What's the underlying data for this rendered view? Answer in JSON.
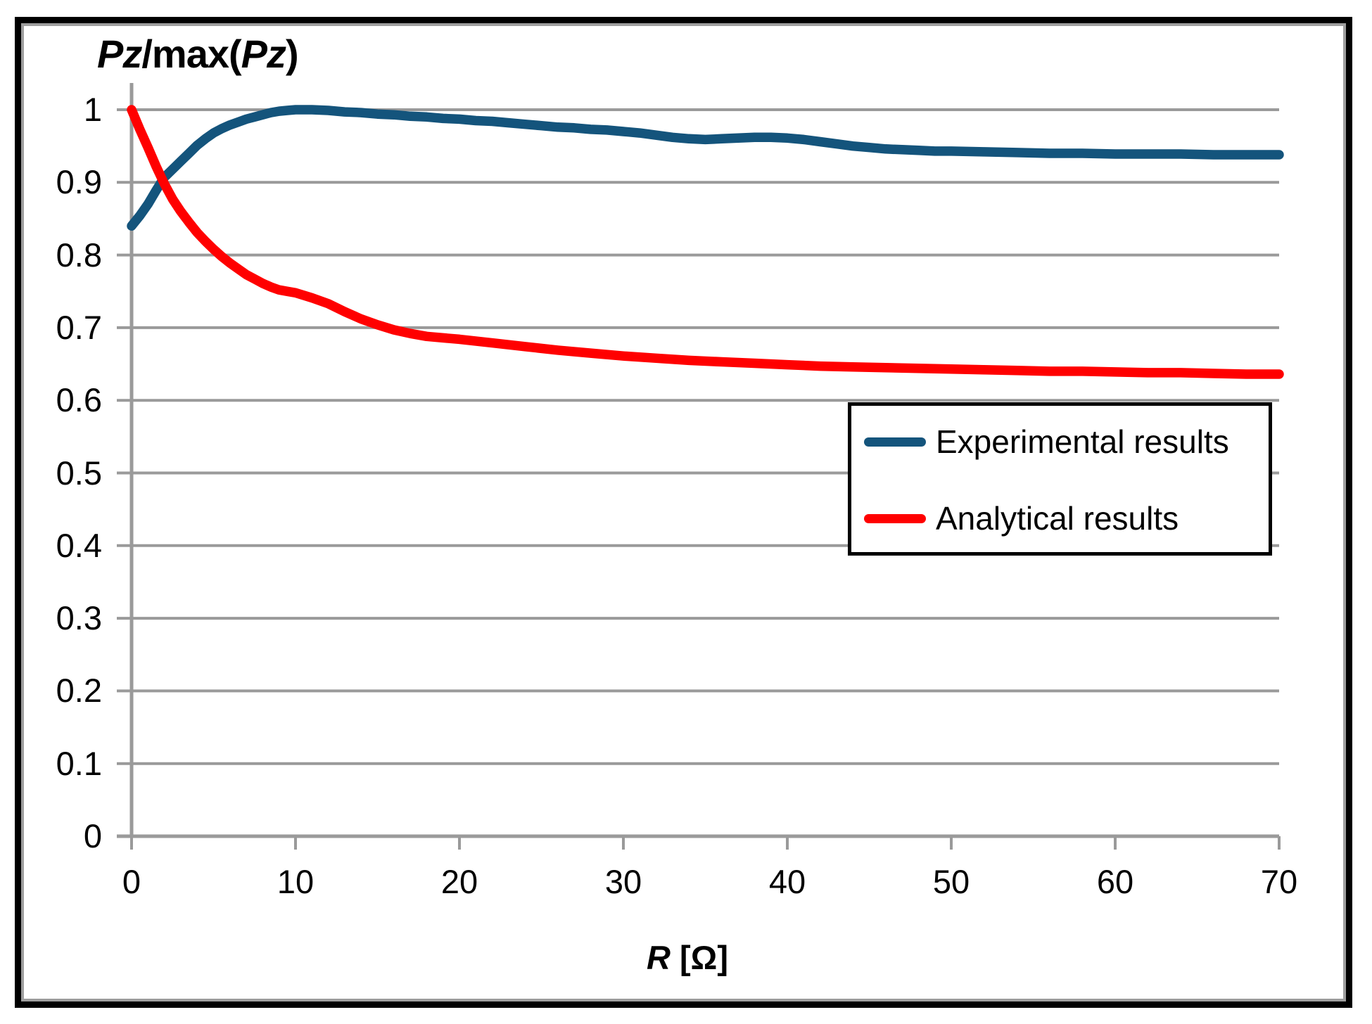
{
  "chart_data": {
    "type": "line",
    "title": {
      "parts": [
        {
          "text": "Pz",
          "italic": true
        },
        {
          "text": "/max(",
          "italic": false
        },
        {
          "text": "Pz",
          "italic": true
        },
        {
          "text": ")",
          "italic": false
        }
      ],
      "display": "Pz/max(Pz)"
    },
    "x_axis": {
      "label_parts": [
        {
          "text": "R",
          "italic": true
        },
        {
          "text": " [Ω]",
          "italic": false
        }
      ],
      "display": "R [Ω]",
      "ticks": [
        0,
        10,
        20,
        30,
        40,
        50,
        60,
        70
      ],
      "range": [
        0,
        70
      ]
    },
    "y_axis": {
      "ticks": [
        "1",
        "0.9",
        "0.8",
        "0.7",
        "0.6",
        "0.5",
        "0.4",
        "0.3",
        "0.2",
        "0.1",
        "0"
      ],
      "range": [
        0,
        1
      ]
    },
    "grid": true,
    "legend_position": "middle-right",
    "colors": {
      "grid": "#9a9a9a",
      "axis": "#9a9a9a",
      "text": "#000000",
      "frame": "#000000",
      "background": "#ffffff"
    },
    "series": [
      {
        "name": "Experimental results",
        "color": "#14547c",
        "points": [
          [
            0,
            0.84
          ],
          [
            0.5,
            0.854
          ],
          [
            1,
            0.87
          ],
          [
            1.5,
            0.889
          ],
          [
            2,
            0.907
          ],
          [
            2.5,
            0.918
          ],
          [
            3,
            0.929
          ],
          [
            3.5,
            0.94
          ],
          [
            4,
            0.951
          ],
          [
            4.5,
            0.96
          ],
          [
            5,
            0.968
          ],
          [
            5.5,
            0.974
          ],
          [
            6,
            0.979
          ],
          [
            6.5,
            0.983
          ],
          [
            7,
            0.987
          ],
          [
            7.5,
            0.99
          ],
          [
            8,
            0.993
          ],
          [
            8.5,
            0.996
          ],
          [
            9,
            0.998
          ],
          [
            9.5,
            0.999
          ],
          [
            10,
            1.0
          ],
          [
            11,
            1.0
          ],
          [
            12,
            0.999
          ],
          [
            13,
            0.997
          ],
          [
            14,
            0.996
          ],
          [
            15,
            0.994
          ],
          [
            16,
            0.993
          ],
          [
            17,
            0.991
          ],
          [
            18,
            0.99
          ],
          [
            19,
            0.988
          ],
          [
            20,
            0.987
          ],
          [
            21,
            0.985
          ],
          [
            22,
            0.984
          ],
          [
            23,
            0.982
          ],
          [
            24,
            0.98
          ],
          [
            25,
            0.978
          ],
          [
            26,
            0.976
          ],
          [
            27,
            0.975
          ],
          [
            28,
            0.973
          ],
          [
            29,
            0.972
          ],
          [
            30,
            0.97
          ],
          [
            31,
            0.968
          ],
          [
            32,
            0.965
          ],
          [
            33,
            0.962
          ],
          [
            34,
            0.96
          ],
          [
            35,
            0.959
          ],
          [
            36,
            0.96
          ],
          [
            37,
            0.961
          ],
          [
            38,
            0.962
          ],
          [
            39,
            0.962
          ],
          [
            40,
            0.961
          ],
          [
            41,
            0.959
          ],
          [
            42,
            0.956
          ],
          [
            43,
            0.953
          ],
          [
            44,
            0.95
          ],
          [
            45,
            0.948
          ],
          [
            46,
            0.946
          ],
          [
            47,
            0.945
          ],
          [
            48,
            0.944
          ],
          [
            49,
            0.943
          ],
          [
            50,
            0.943
          ],
          [
            52,
            0.942
          ],
          [
            54,
            0.941
          ],
          [
            56,
            0.94
          ],
          [
            58,
            0.94
          ],
          [
            60,
            0.939
          ],
          [
            62,
            0.939
          ],
          [
            64,
            0.939
          ],
          [
            66,
            0.938
          ],
          [
            68,
            0.938
          ],
          [
            70,
            0.938
          ]
        ]
      },
      {
        "name": "Analytical results",
        "color": "#ff0000",
        "points": [
          [
            0,
            1.0
          ],
          [
            0.5,
            0.973
          ],
          [
            1,
            0.948
          ],
          [
            1.5,
            0.922
          ],
          [
            2,
            0.898
          ],
          [
            2.5,
            0.877
          ],
          [
            3,
            0.86
          ],
          [
            3.5,
            0.845
          ],
          [
            4,
            0.831
          ],
          [
            4.5,
            0.819
          ],
          [
            5,
            0.808
          ],
          [
            5.5,
            0.798
          ],
          [
            6,
            0.789
          ],
          [
            6.5,
            0.781
          ],
          [
            7,
            0.773
          ],
          [
            7.5,
            0.767
          ],
          [
            8,
            0.761
          ],
          [
            8.5,
            0.756
          ],
          [
            9,
            0.752
          ],
          [
            9.5,
            0.75
          ],
          [
            10,
            0.748
          ],
          [
            11,
            0.741
          ],
          [
            12,
            0.733
          ],
          [
            13,
            0.722
          ],
          [
            14,
            0.712
          ],
          [
            15,
            0.704
          ],
          [
            16,
            0.697
          ],
          [
            17,
            0.692
          ],
          [
            18,
            0.688
          ],
          [
            19,
            0.686
          ],
          [
            20,
            0.684
          ],
          [
            22,
            0.679
          ],
          [
            24,
            0.674
          ],
          [
            26,
            0.669
          ],
          [
            28,
            0.665
          ],
          [
            30,
            0.661
          ],
          [
            32,
            0.658
          ],
          [
            34,
            0.655
          ],
          [
            36,
            0.653
          ],
          [
            38,
            0.651
          ],
          [
            40,
            0.649
          ],
          [
            42,
            0.647
          ],
          [
            44,
            0.646
          ],
          [
            46,
            0.645
          ],
          [
            48,
            0.644
          ],
          [
            50,
            0.643
          ],
          [
            52,
            0.642
          ],
          [
            54,
            0.641
          ],
          [
            56,
            0.64
          ],
          [
            58,
            0.64
          ],
          [
            60,
            0.639
          ],
          [
            62,
            0.638
          ],
          [
            64,
            0.638
          ],
          [
            66,
            0.637
          ],
          [
            68,
            0.636
          ],
          [
            70,
            0.636
          ]
        ]
      }
    ]
  }
}
